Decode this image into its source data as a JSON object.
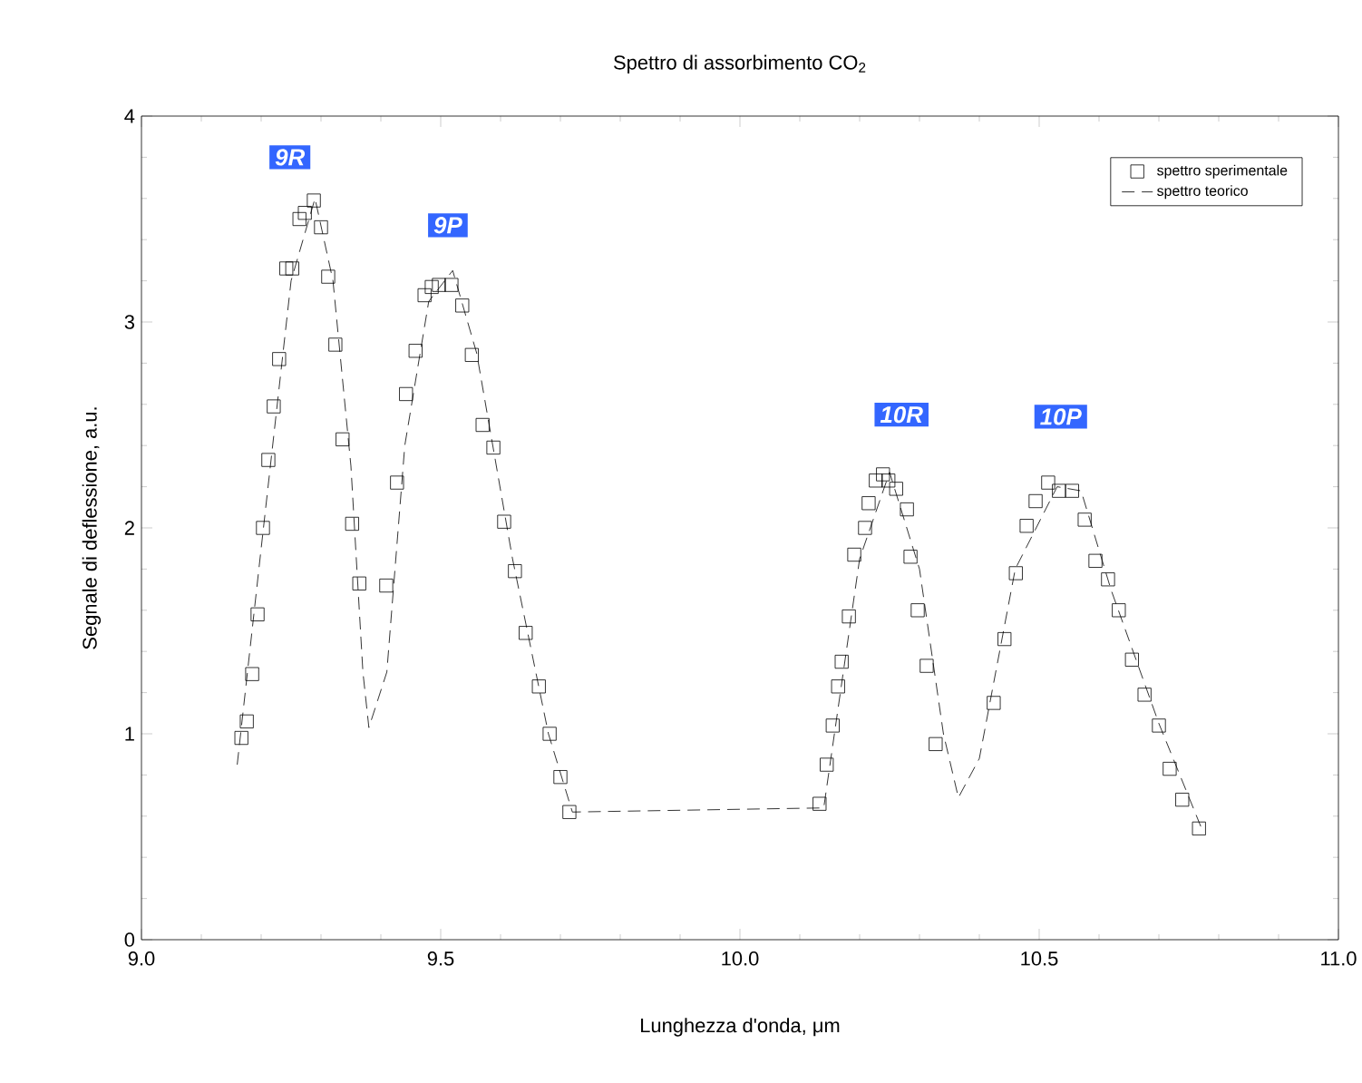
{
  "chart_data": {
    "type": "scatter",
    "title": "Spettro di assorbimento CO$_{2}$",
    "xlabel": "Lunghezza d'onda,  μm",
    "ylabel": "Segnale di deflessione, a.u.",
    "xlim": [
      9.0,
      11.0
    ],
    "ylim": [
      0,
      4
    ],
    "xticks": [
      {
        "value": 9.0,
        "label": "9.0"
      },
      {
        "value": 9.5,
        "label": "9.5"
      },
      {
        "value": 10.0,
        "label": "10.0"
      },
      {
        "value": 10.5,
        "label": "10.5"
      },
      {
        "value": 11.0,
        "label": "11.0"
      }
    ],
    "yticks": [
      0,
      1,
      2,
      3,
      4
    ],
    "grid": false,
    "legend": "top right",
    "annotations": [
      {
        "text": "9R",
        "x": 9.248,
        "y": 3.8
      },
      {
        "text": "9P",
        "x": 9.512,
        "y": 3.47
      },
      {
        "text": "10R",
        "x": 10.27,
        "y": 2.55
      },
      {
        "text": "10P",
        "x": 10.536,
        "y": 2.54
      }
    ],
    "series": [
      {
        "name": "spettro sperimentale",
        "type": "scatter",
        "marker": "square",
        "color": "#000000",
        "x": [
          9.167,
          9.176,
          9.185,
          9.194,
          9.203,
          9.212,
          9.221,
          9.23,
          9.242,
          9.252,
          9.264,
          9.273,
          9.288,
          9.3,
          9.312,
          9.324,
          9.336,
          9.352,
          9.364,
          9.409,
          9.427,
          9.442,
          9.458,
          9.473,
          9.485,
          9.497,
          9.518,
          9.536,
          9.552,
          9.57,
          9.588,
          9.606,
          9.624,
          9.642,
          9.664,
          9.682,
          9.7,
          9.715,
          10.133,
          10.145,
          10.155,
          10.164,
          10.17,
          10.182,
          10.191,
          10.209,
          10.215,
          10.227,
          10.239,
          10.248,
          10.261,
          10.279,
          10.285,
          10.297,
          10.312,
          10.327,
          10.424,
          10.442,
          10.461,
          10.479,
          10.494,
          10.515,
          10.533,
          10.555,
          10.576,
          10.594,
          10.615,
          10.633,
          10.655,
          10.676,
          10.7,
          10.718,
          10.739,
          10.767
        ],
        "values": [
          0.98,
          1.06,
          1.29,
          1.58,
          2.0,
          2.33,
          2.59,
          2.82,
          3.26,
          3.26,
          3.5,
          3.53,
          3.59,
          3.46,
          3.22,
          2.89,
          2.43,
          2.02,
          1.73,
          1.72,
          2.22,
          2.65,
          2.86,
          3.13,
          3.17,
          3.18,
          3.18,
          3.08,
          2.84,
          2.5,
          2.39,
          2.03,
          1.79,
          1.49,
          1.23,
          1.0,
          0.79,
          0.62,
          0.66,
          0.85,
          1.04,
          1.23,
          1.35,
          1.57,
          1.87,
          2.0,
          2.12,
          2.23,
          2.26,
          2.23,
          2.19,
          2.09,
          1.86,
          1.6,
          1.33,
          0.95,
          1.15,
          1.46,
          1.78,
          2.01,
          2.13,
          2.22,
          2.18,
          2.18,
          2.04,
          1.84,
          1.75,
          1.6,
          1.36,
          1.19,
          1.04,
          0.83,
          0.68,
          0.54
        ]
      },
      {
        "name": "spettro teorico",
        "type": "line",
        "line_style": "dashed",
        "color": "#000000",
        "x": [
          9.16,
          9.2,
          9.25,
          9.29,
          9.32,
          9.35,
          9.37,
          9.38,
          9.41,
          9.44,
          9.48,
          9.52,
          9.56,
          9.62,
          9.68,
          9.72,
          10.14,
          10.2,
          10.25,
          10.3,
          10.34,
          10.365,
          10.4,
          10.46,
          10.53,
          10.57,
          10.62,
          10.7,
          10.77
        ],
        "values": [
          0.85,
          1.9,
          3.2,
          3.6,
          3.2,
          2.3,
          1.3,
          1.03,
          1.3,
          2.4,
          3.1,
          3.25,
          2.85,
          1.85,
          1.0,
          0.62,
          0.64,
          1.85,
          2.27,
          1.8,
          1.0,
          0.69,
          0.88,
          1.8,
          2.2,
          2.18,
          1.7,
          1.05,
          0.55
        ]
      }
    ]
  }
}
